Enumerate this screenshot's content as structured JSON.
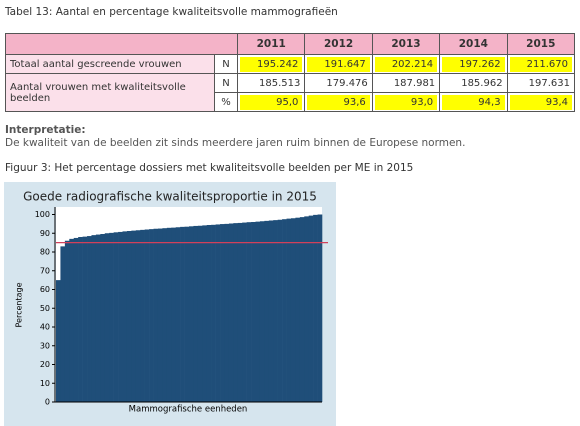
{
  "caption": "Tabel 13: Aantal en percentage kwaliteitsvolle mammografieën",
  "table": {
    "header": [
      "2011",
      "2012",
      "2013",
      "2014",
      "2015"
    ],
    "rows": [
      {
        "label": "Totaal aantal gescreende vrouwen",
        "unit": "N",
        "values": [
          "195.242",
          "191.647",
          "202.214",
          "197.262",
          "211.670"
        ],
        "highlight": true
      },
      {
        "label": "Aantal vrouwen met kwaliteitsvolle beelden",
        "unit": "N",
        "values": [
          "185.513",
          "179.476",
          "187.981",
          "185.962",
          "197.631"
        ],
        "highlight": false
      },
      {
        "unit": "%",
        "values": [
          "95,0",
          "93,6",
          "93,0",
          "94,3",
          "93,4"
        ],
        "highlight": true
      }
    ]
  },
  "interpretation": {
    "heading": "Interpretatie:",
    "text": "De kwaliteit van de beelden zit sinds meerdere jaren ruim binnen de Europese normen."
  },
  "figure_caption": "Figuur 3: Het percentage dossiers met kwaliteitsvolle beelden per ME in 2015",
  "chart_data": {
    "type": "bar",
    "title": "Goede radiografische kwaliteitsproportie in 2015",
    "y_label": "Percentage",
    "x_label": "Mammografische eenheden",
    "color": "#1f4e79",
    "values": [
      65,
      83,
      86,
      87,
      87.5,
      88,
      88.2,
      88.5,
      89,
      89.3,
      89.6,
      90,
      90.2,
      90.5,
      90.7,
      91,
      91.2,
      91.4,
      91.6,
      91.8,
      92,
      92.2,
      92.4,
      92.5,
      92.7,
      92.9,
      93,
      93.2,
      93.4,
      93.5,
      93.7,
      93.9,
      94,
      94.2,
      94.4,
      94.5,
      94.7,
      94.9,
      95,
      95.2,
      95.4,
      95.5,
      95.7,
      95.9,
      96,
      96.2,
      96.4,
      96.6,
      96.8,
      97,
      97.2,
      97.5,
      97.8,
      98,
      98.3,
      98.6,
      99,
      99.4,
      99.8,
      100
    ],
    "ylim": [
      0,
      104
    ],
    "yticks": [
      0,
      10,
      20,
      30,
      40,
      50,
      60,
      70,
      80,
      90,
      100
    ],
    "reference_line": {
      "value": 85,
      "color": "#d2405a"
    }
  }
}
